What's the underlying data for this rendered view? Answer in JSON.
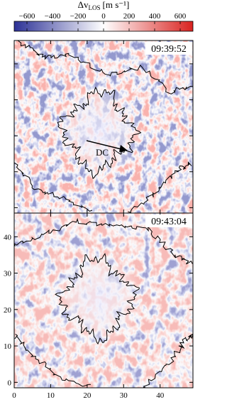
{
  "colorbar": {
    "symbol": "Δv",
    "subscript": "LOS",
    "unit": "[m s⁻¹]",
    "lim": [
      -700,
      700
    ],
    "ticks": [
      {
        "value": -600,
        "label": "−600"
      },
      {
        "value": -400,
        "label": "−400"
      },
      {
        "value": -200,
        "label": "−200"
      },
      0,
      200,
      400,
      600
    ],
    "cmap": [
      "#2c3196",
      "#ffffff",
      "#d9221f"
    ]
  },
  "panels": [
    {
      "timestamp": "09:39:52",
      "annotation": "DC"
    },
    {
      "timestamp": "09:43:04"
    }
  ],
  "axes": {
    "xlim": [
      0,
      49
    ],
    "ylim": [
      -1.5,
      46.5
    ],
    "xticks": [
      0,
      10,
      20,
      30,
      40
    ],
    "yticks": [
      0,
      10,
      20,
      30,
      40
    ]
  }
}
